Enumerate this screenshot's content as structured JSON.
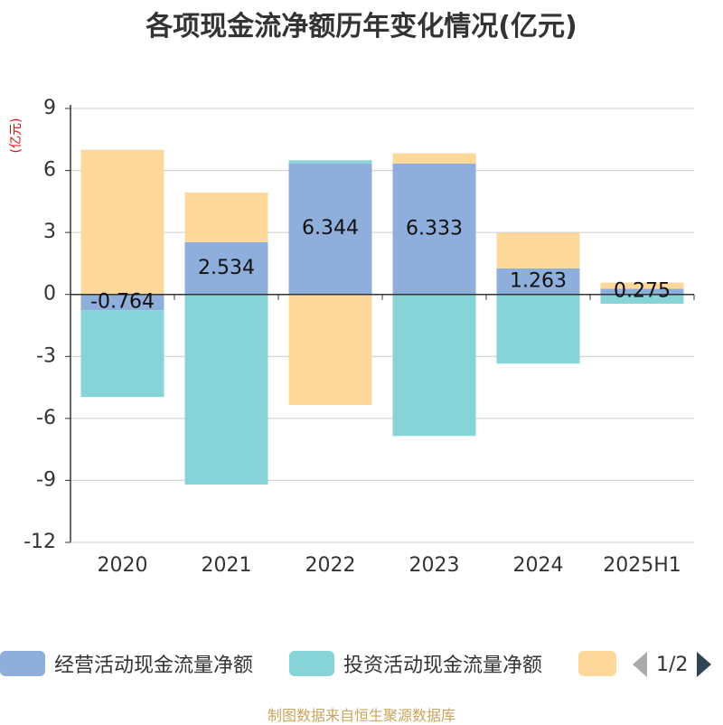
{
  "title": "各项现金流净额历年变化情况(亿元)",
  "source": "制图数据来自恒生聚源数据库",
  "legend": {
    "items": [
      {
        "name": "经营活动现金流量净额",
        "color": "#8eaedc"
      },
      {
        "name": "投资活动现金流量净额",
        "color": "#86d4d8"
      },
      {
        "name": "",
        "color": "#fdd89a"
      }
    ],
    "page": "1/2"
  },
  "chart_data": {
    "type": "bar",
    "stacked": true,
    "unit": "(亿元)",
    "categories": [
      "2020",
      "2021",
      "2022",
      "2023",
      "2024",
      "2025H1"
    ],
    "ylim": [
      -12,
      9
    ],
    "yticks": [
      9,
      6,
      3,
      0,
      -3,
      -6,
      -9,
      -12
    ],
    "grid": true,
    "legend_position": "bottom",
    "series": [
      {
        "name": "经营活动现金流量净额",
        "color": "#8eaedc",
        "values": [
          -0.764,
          2.534,
          6.344,
          6.333,
          1.263,
          0.275
        ],
        "labels": [
          "-0.764",
          "2.534",
          "6.344",
          "6.333",
          "1.263",
          "0.275"
        ]
      },
      {
        "name": "投资活动现金流量净额",
        "color": "#86d4d8",
        "values": [
          -4.2,
          -9.2,
          0.15,
          -6.85,
          -3.35,
          -0.45
        ]
      },
      {
        "color": "#fdd89a",
        "values": [
          7.0,
          2.4,
          -5.35,
          0.5,
          1.72,
          0.3
        ]
      }
    ]
  }
}
